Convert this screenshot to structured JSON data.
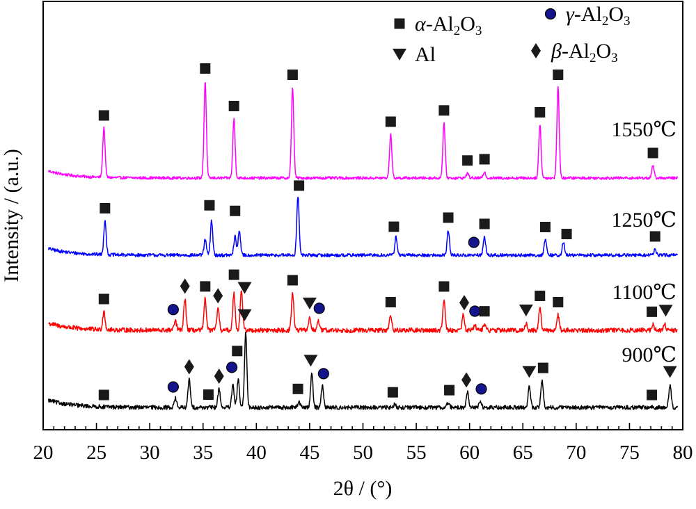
{
  "chart_data": {
    "type": "line",
    "xlabel": "2θ / (°)",
    "ylabel": "Intensity / (a.u.)",
    "xlim": [
      20,
      80
    ],
    "x_ticks": [
      "20",
      "25",
      "30",
      "35",
      "40",
      "45",
      "50",
      "55",
      "60",
      "65",
      "70",
      "75",
      "80"
    ],
    "legend": [
      {
        "symbol": "square",
        "phase": "α-Al2O3",
        "greek": "α",
        "base": "-Al",
        "sub1": "2",
        "mid": "O",
        "sub2": "3"
      },
      {
        "symbol": "circle",
        "phase": "γ-Al2O3",
        "greek": "γ",
        "base": "-Al",
        "sub1": "2",
        "mid": "O",
        "sub2": "3"
      },
      {
        "symbol": "triangle",
        "phase": "Al",
        "greek": "",
        "base": "Al",
        "sub1": "",
        "mid": "",
        "sub2": ""
      },
      {
        "symbol": "diamond",
        "phase": "β-Al2O3",
        "greek": "β",
        "base": "-Al",
        "sub1": "2",
        "mid": "O",
        "sub2": "3"
      }
    ],
    "series": [
      {
        "name": "1550℃",
        "color": "#ff00ff",
        "baseline": 0.32,
        "noise": 0.15,
        "peaks": [
          [
            25.7,
            0.8
          ],
          [
            35.2,
            1.55
          ],
          [
            37.9,
            0.95
          ],
          [
            43.4,
            1.45
          ],
          [
            52.6,
            0.7
          ],
          [
            57.6,
            0.88
          ],
          [
            59.8,
            0.08
          ],
          [
            61.4,
            0.1
          ],
          [
            66.6,
            0.85
          ],
          [
            68.3,
            1.45
          ],
          [
            77.2,
            0.2
          ]
        ],
        "markers": [
          [
            25.7,
            "square"
          ],
          [
            35.2,
            "square"
          ],
          [
            37.9,
            "square"
          ],
          [
            43.4,
            "square"
          ],
          [
            52.6,
            "square"
          ],
          [
            57.6,
            "square"
          ],
          [
            59.8,
            "square"
          ],
          [
            61.4,
            "square"
          ],
          [
            66.6,
            "square"
          ],
          [
            68.3,
            "square"
          ],
          [
            77.2,
            "square"
          ]
        ]
      },
      {
        "name": "1250℃",
        "color": "#0000ff",
        "baseline": 0.3,
        "noise": 0.18,
        "peaks": [
          [
            25.8,
            0.55
          ],
          [
            35.2,
            0.25
          ],
          [
            35.8,
            0.55
          ],
          [
            38.0,
            0.3
          ],
          [
            38.4,
            0.4
          ],
          [
            43.9,
            0.95
          ],
          [
            53.1,
            0.3
          ],
          [
            58.0,
            0.4
          ],
          [
            61.4,
            0.3
          ],
          [
            67.1,
            0.25
          ],
          [
            68.8,
            0.2
          ],
          [
            77.4,
            0.1
          ]
        ],
        "markers": [
          [
            25.8,
            "square"
          ],
          [
            35.6,
            "square"
          ],
          [
            38.0,
            "square"
          ],
          [
            44.0,
            "square"
          ],
          [
            52.9,
            "square"
          ],
          [
            58.0,
            "square"
          ],
          [
            60.4,
            "circle"
          ],
          [
            61.4,
            "square"
          ],
          [
            67.1,
            "square"
          ],
          [
            69.1,
            "square"
          ],
          [
            77.4,
            "square"
          ]
        ]
      },
      {
        "name": "1100℃",
        "color": "#ff0000",
        "baseline": 0.32,
        "noise": 0.25,
        "peaks": [
          [
            25.7,
            0.3
          ],
          [
            32.4,
            0.15
          ],
          [
            33.3,
            0.5
          ],
          [
            35.2,
            0.5
          ],
          [
            36.4,
            0.35
          ],
          [
            37.9,
            0.6
          ],
          [
            38.6,
            0.65
          ],
          [
            43.4,
            0.6
          ],
          [
            45.0,
            0.2
          ],
          [
            45.8,
            0.15
          ],
          [
            52.6,
            0.25
          ],
          [
            57.6,
            0.5
          ],
          [
            59.4,
            0.25
          ],
          [
            60.5,
            0.1
          ],
          [
            61.4,
            0.1
          ],
          [
            65.3,
            0.1
          ],
          [
            66.6,
            0.35
          ],
          [
            68.3,
            0.25
          ],
          [
            77.2,
            0.1
          ],
          [
            78.3,
            0.1
          ]
        ],
        "markers": [
          [
            25.7,
            "square"
          ],
          [
            32.2,
            "circle"
          ],
          [
            33.3,
            "diamond"
          ],
          [
            35.2,
            "square"
          ],
          [
            36.4,
            "diamond"
          ],
          [
            37.9,
            "square"
          ],
          [
            38.9,
            "triangle"
          ],
          [
            43.4,
            "square"
          ],
          [
            45.0,
            "triangle"
          ],
          [
            45.9,
            "circle"
          ],
          [
            52.6,
            "square"
          ],
          [
            57.6,
            "square"
          ],
          [
            59.5,
            "diamond"
          ],
          [
            60.5,
            "circle"
          ],
          [
            61.4,
            "square"
          ],
          [
            65.3,
            "triangle"
          ],
          [
            66.6,
            "square"
          ],
          [
            68.3,
            "square"
          ],
          [
            77.1,
            "square"
          ],
          [
            78.4,
            "triangle"
          ]
        ]
      },
      {
        "name": "900℃",
        "color": "#000000",
        "baseline": 0.33,
        "noise": 0.22,
        "peaks": [
          [
            32.4,
            0.15
          ],
          [
            33.7,
            0.45
          ],
          [
            36.5,
            0.3
          ],
          [
            37.8,
            0.35
          ],
          [
            38.3,
            0.45
          ],
          [
            39.0,
            1.2
          ],
          [
            44.0,
            0.1
          ],
          [
            45.2,
            0.55
          ],
          [
            46.2,
            0.35
          ],
          [
            53.0,
            0.05
          ],
          [
            58.0,
            0.08
          ],
          [
            59.8,
            0.25
          ],
          [
            61.0,
            0.1
          ],
          [
            65.6,
            0.35
          ],
          [
            66.8,
            0.45
          ],
          [
            78.8,
            0.35
          ]
        ],
        "markers": [
          [
            25.7,
            "square"
          ],
          [
            32.2,
            "circle"
          ],
          [
            33.7,
            "diamond"
          ],
          [
            35.5,
            "square"
          ],
          [
            36.5,
            "diamond"
          ],
          [
            37.7,
            "circle"
          ],
          [
            38.2,
            "square"
          ],
          [
            38.9,
            "triangle"
          ],
          [
            43.9,
            "square"
          ],
          [
            45.1,
            "triangle"
          ],
          [
            46.3,
            "circle"
          ],
          [
            52.8,
            "square"
          ],
          [
            58.1,
            "square"
          ],
          [
            59.7,
            "diamond"
          ],
          [
            61.1,
            "circle"
          ],
          [
            65.6,
            "triangle"
          ],
          [
            66.9,
            "square"
          ],
          [
            77.1,
            "square"
          ],
          [
            78.8,
            "triangle"
          ]
        ]
      }
    ]
  }
}
